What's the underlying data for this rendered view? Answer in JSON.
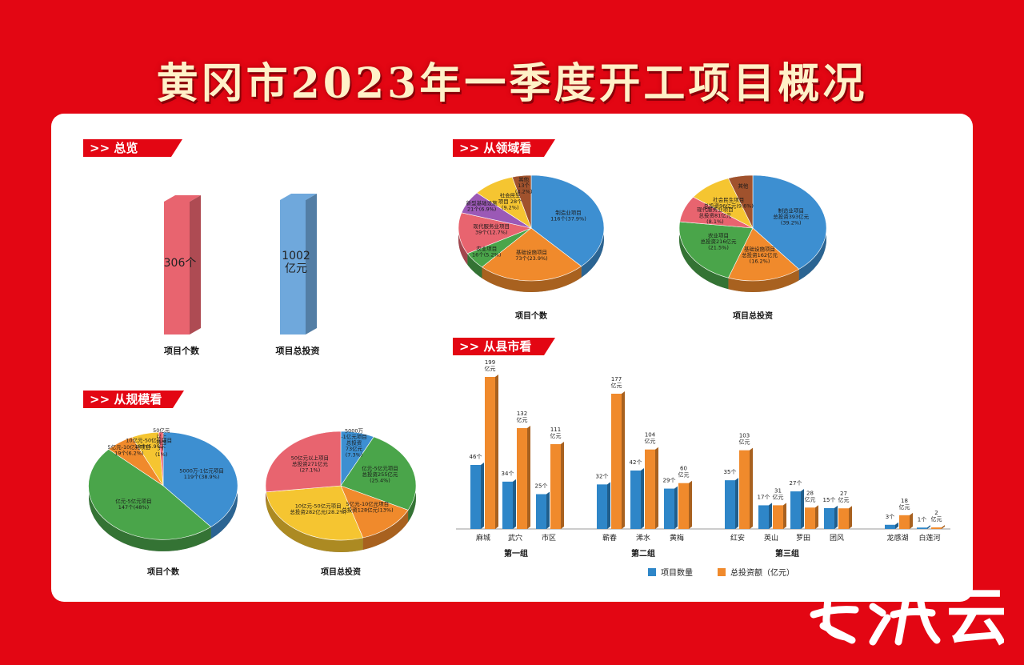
{
  "title": "黄冈市2023年一季度开工项目概况",
  "sections": {
    "overview": ">> 总览",
    "field": ">> 从领域看",
    "scale": ">> 从规模看",
    "county": ">> 从县市看"
  },
  "watermark": "云",
  "colors": {
    "red": "#e30613",
    "blue": "#3d8fd1",
    "orange": "#f08a2c",
    "green": "#4aa54a",
    "purple": "#9b59b6",
    "pink": "#e8646f",
    "yellow": "#f5c531",
    "brown": "#a0522d"
  },
  "chart_data": [
    {
      "id": "overview",
      "type": "bar",
      "categories": [
        "项目个数",
        "项目总投资"
      ],
      "values": [
        306,
        1002
      ],
      "value_labels": [
        "306个",
        "1002\n亿元"
      ],
      "colors": [
        "#e8646f",
        "#6fa8dc"
      ]
    },
    {
      "id": "field-count",
      "type": "pie",
      "title": "项目个数",
      "slices": [
        {
          "label": "制造业项目\n116个(37.9%)",
          "pct": 37.9,
          "color": "#3d8fd1"
        },
        {
          "label": "基础设施项目\n73个(23.9%)",
          "pct": 23.9,
          "color": "#f08a2c"
        },
        {
          "label": "农业项目\n16个(5.2%)",
          "pct": 5.2,
          "color": "#4aa54a"
        },
        {
          "label": "现代服务业项目\n39个(12.7%)",
          "pct": 12.7,
          "color": "#e8646f"
        },
        {
          "label": "新型基础设施\n21个(6.9%)",
          "pct": 6.9,
          "color": "#9b59b6"
        },
        {
          "label": "社会民生\n项目 28个\n(9.2%)",
          "pct": 9.2,
          "color": "#f5c531"
        },
        {
          "label": "其他\n13个\n(4.2%)",
          "pct": 4.2,
          "color": "#a0522d"
        }
      ]
    },
    {
      "id": "field-invest",
      "type": "pie",
      "title": "项目总投资",
      "slices": [
        {
          "label": "制造业项目\n总投资393亿元\n(39.2%)",
          "pct": 39.2,
          "color": "#3d8fd1"
        },
        {
          "label": "基础设施项目\n总投资162亿元\n(16.2%)",
          "pct": 16.2,
          "color": "#f08a2c"
        },
        {
          "label": "农业项目\n总投资216亿元\n(21.5%)",
          "pct": 21.5,
          "color": "#4aa54a"
        },
        {
          "label": "现代服务业项目\n总投资81亿元\n(8.1%)",
          "pct": 8.1,
          "color": "#e8646f"
        },
        {
          "label": "社会民生项目\n总投资96亿元(9.6%)",
          "pct": 9.6,
          "color": "#f5c531"
        },
        {
          "label": "其他",
          "pct": 5.4,
          "color": "#a0522d"
        }
      ]
    },
    {
      "id": "scale-count",
      "type": "pie",
      "title": "项目个数",
      "slices": [
        {
          "label": "5000万-1亿元项目\n119个(38.9%)",
          "pct": 38.9,
          "color": "#3d8fd1"
        },
        {
          "label": "亿元-5亿元项目\n147个(48%)",
          "pct": 48.0,
          "color": "#4aa54a"
        },
        {
          "label": "5亿元-10亿元项目\n19个(6.2%)",
          "pct": 6.2,
          "color": "#f08a2c"
        },
        {
          "label": "10亿元-50亿元项目\n18个(5.9%)",
          "pct": 5.9,
          "color": "#f5c531"
        },
        {
          "label": "50亿元\n以上\n项目\n3个\n(1%)",
          "pct": 1.0,
          "color": "#e8646f"
        }
      ]
    },
    {
      "id": "scale-invest",
      "type": "pie",
      "title": "项目总投资",
      "slices": [
        {
          "label": "5000万\n-1亿元项目\n总投资\n73亿元\n(7.3%)",
          "pct": 7.3,
          "color": "#3d8fd1"
        },
        {
          "label": "亿元-5亿元项目\n总投资255亿元\n(25.4%)",
          "pct": 25.4,
          "color": "#4aa54a"
        },
        {
          "label": "5亿元-10亿元项目\n总投资128亿元(13%)",
          "pct": 13.0,
          "color": "#f08a2c"
        },
        {
          "label": "10亿元-50亿元项目\n总投资282亿元(28.2%)",
          "pct": 28.2,
          "color": "#f5c531"
        },
        {
          "label": "50亿元以上项目\n总投资271亿元\n(27.1%)",
          "pct": 27.1,
          "color": "#e8646f"
        }
      ]
    },
    {
      "id": "county",
      "type": "bar",
      "series": [
        {
          "name": "项目数量",
          "color": "#2e86c8"
        },
        {
          "name": "总投资额（亿元）",
          "color": "#f08a2c"
        }
      ],
      "groups": [
        {
          "name": "第一组",
          "items": [
            {
              "name": "麻城",
              "count": 46,
              "count_label": "46个",
              "invest": 199,
              "invest_label": "199\n亿元"
            },
            {
              "name": "武穴",
              "count": 34,
              "count_label": "34个",
              "invest": 132,
              "invest_label": "132\n亿元"
            },
            {
              "name": "市区",
              "count": 25,
              "count_label": "25个",
              "invest": 111,
              "invest_label": "111\n亿元"
            }
          ]
        },
        {
          "name": "第二组",
          "items": [
            {
              "name": "蕲春",
              "count": 32,
              "count_label": "32个",
              "invest": 177,
              "invest_label": "177\n亿元"
            },
            {
              "name": "浠水",
              "count": 42,
              "count_label": "42个",
              "invest": 104,
              "invest_label": "104\n亿元"
            },
            {
              "name": "黄梅",
              "count": 29,
              "count_label": "29个",
              "invest": 60,
              "invest_label": "60\n亿元"
            }
          ]
        },
        {
          "name": "第三组",
          "items": [
            {
              "name": "红安",
              "count": 35,
              "count_label": "35个",
              "invest": 103,
              "invest_label": "103\n亿元"
            },
            {
              "name": "英山",
              "count": 17,
              "count_label": "17个",
              "invest": 31,
              "invest_label": "31\n亿元"
            },
            {
              "name": "罗田",
              "count": 27,
              "count_label": "27个",
              "invest": 28,
              "invest_label": "28\n亿元"
            },
            {
              "name": "团风",
              "count": 15,
              "count_label": "15个",
              "invest": 27,
              "invest_label": "27\n亿元"
            }
          ]
        },
        {
          "name": "",
          "items": [
            {
              "name": "龙感湖",
              "count": 3,
              "count_label": "3个",
              "invest": 18,
              "invest_label": "18\n亿元"
            },
            {
              "name": "白莲河",
              "count": 1,
              "count_label": "1个",
              "invest": 2,
              "invest_label": "2\n亿元"
            }
          ]
        }
      ]
    }
  ]
}
